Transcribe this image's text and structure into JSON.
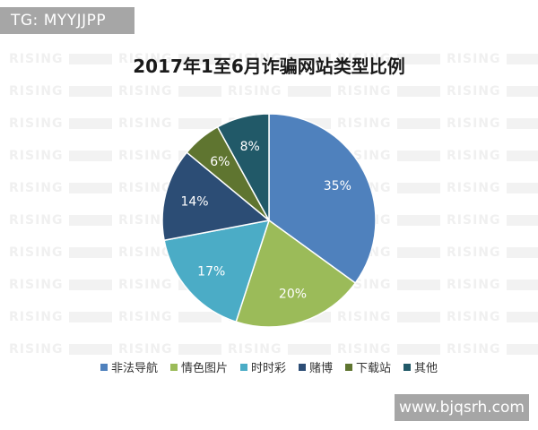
{
  "tg_label": "TG: MYYJJPP",
  "website_label": "www.bjqsrh.com",
  "watermark_text": "RISING",
  "chart_data": {
    "type": "pie",
    "title": "2017年1至6月诈骗网站类型比例",
    "categories": [
      "非法导航",
      "情色图片",
      "时时彩",
      "赌博",
      "下载站",
      "其他"
    ],
    "values": [
      35,
      20,
      17,
      14,
      6,
      8
    ],
    "labels": [
      "35%",
      "20%",
      "17%",
      "14%",
      "6%",
      "8%"
    ],
    "colors": [
      "#4f81bd",
      "#9bbb59",
      "#4bacc6",
      "#2c4d75",
      "#5f7530",
      "#215968"
    ],
    "legend_position": "bottom"
  }
}
